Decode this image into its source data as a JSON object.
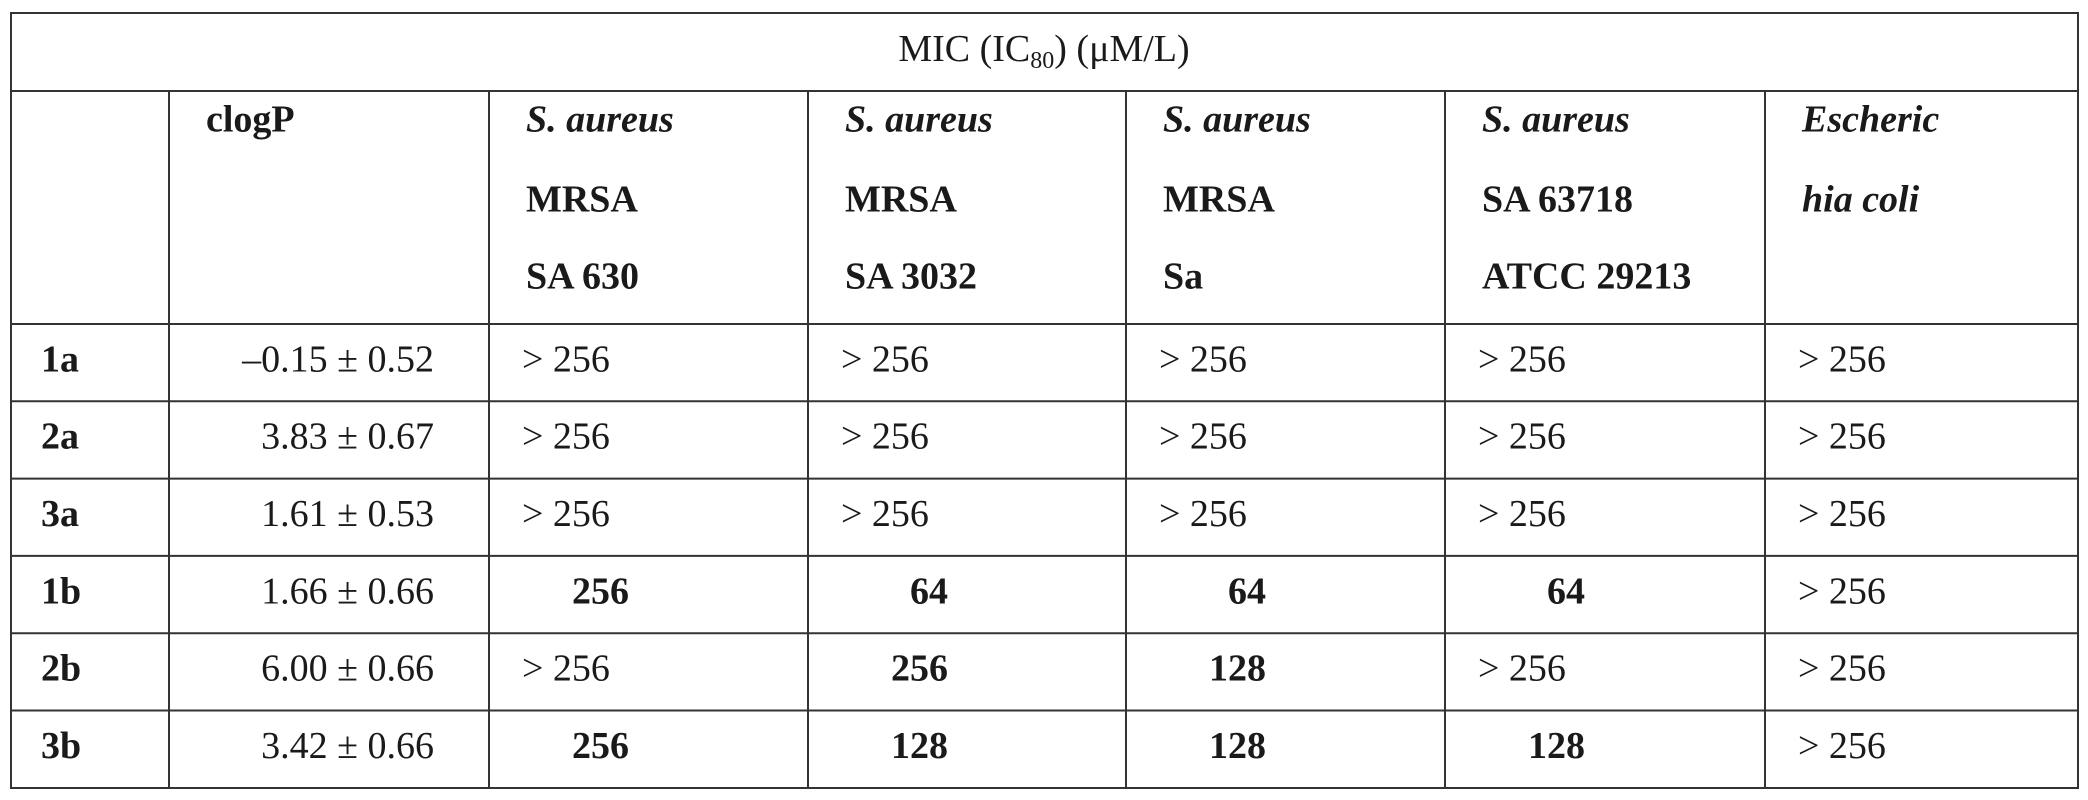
{
  "title": {
    "text": "MIC (IC",
    "subscript": "80",
    "suffix": ") (μM/L)"
  },
  "table": {
    "header": [
      {
        "lines": []
      },
      {
        "lines": [
          {
            "text": "clogP",
            "italic": false
          }
        ]
      },
      {
        "lines": [
          {
            "text": "S. aureus",
            "italic": true
          },
          {
            "text": "MRSA",
            "italic": false
          },
          {
            "text": "SA 630",
            "italic": false
          }
        ]
      },
      {
        "lines": [
          {
            "text": "S. aureus",
            "italic": true
          },
          {
            "text": "MRSA",
            "italic": false
          },
          {
            "text": "SA 3032",
            "italic": false
          }
        ]
      },
      {
        "lines": [
          {
            "text": "S. aureus",
            "italic": true
          },
          {
            "text": "MRSA",
            "italic": false
          },
          {
            "text": "Sa",
            "italic": false
          }
        ]
      },
      {
        "lines": [
          {
            "text": "S. aureus",
            "italic": true
          },
          {
            "text": "SA 63718",
            "italic": false
          },
          {
            "text": "ATCC 29213",
            "italic": false
          }
        ]
      },
      {
        "lines": [
          {
            "text": "Escheric",
            "italic": true
          },
          {
            "text": "hia coli",
            "italic": true
          }
        ]
      }
    ],
    "rows": [
      {
        "label": "1a",
        "clogP": "–0.15 ± 0.52",
        "values": [
          {
            "text": "> 256",
            "bold": false
          },
          {
            "text": "> 256",
            "bold": false
          },
          {
            "text": "> 256",
            "bold": false
          },
          {
            "text": "> 256",
            "bold": false
          },
          {
            "text": "> 256",
            "bold": false
          }
        ]
      },
      {
        "label": "2a",
        "clogP": "3.83 ± 0.67",
        "values": [
          {
            "text": "> 256",
            "bold": false
          },
          {
            "text": "> 256",
            "bold": false
          },
          {
            "text": "> 256",
            "bold": false
          },
          {
            "text": "> 256",
            "bold": false
          },
          {
            "text": "> 256",
            "bold": false
          }
        ]
      },
      {
        "label": "3a",
        "clogP": "1.61 ± 0.53",
        "values": [
          {
            "text": "> 256",
            "bold": false
          },
          {
            "text": "> 256",
            "bold": false
          },
          {
            "text": "> 256",
            "bold": false
          },
          {
            "text": "> 256",
            "bold": false
          },
          {
            "text": "> 256",
            "bold": false
          }
        ]
      },
      {
        "label": "1b",
        "clogP": "1.66 ± 0.66",
        "values": [
          {
            "text": "256",
            "bold": true
          },
          {
            "text": "64",
            "bold": true
          },
          {
            "text": "64",
            "bold": true
          },
          {
            "text": "64",
            "bold": true
          },
          {
            "text": "> 256",
            "bold": false
          }
        ]
      },
      {
        "label": "2b",
        "clogP": "6.00 ± 0.66",
        "values": [
          {
            "text": "> 256",
            "bold": false
          },
          {
            "text": "256",
            "bold": true
          },
          {
            "text": "128",
            "bold": true
          },
          {
            "text": "> 256",
            "bold": false
          },
          {
            "text": "> 256",
            "bold": false
          }
        ]
      },
      {
        "label": "3b",
        "clogP": "3.42 ± 0.66",
        "values": [
          {
            "text": "256",
            "bold": true
          },
          {
            "text": "128",
            "bold": true
          },
          {
            "text": "128",
            "bold": true
          },
          {
            "text": "128",
            "bold": true
          },
          {
            "text": "> 256",
            "bold": false
          }
        ]
      }
    ]
  }
}
